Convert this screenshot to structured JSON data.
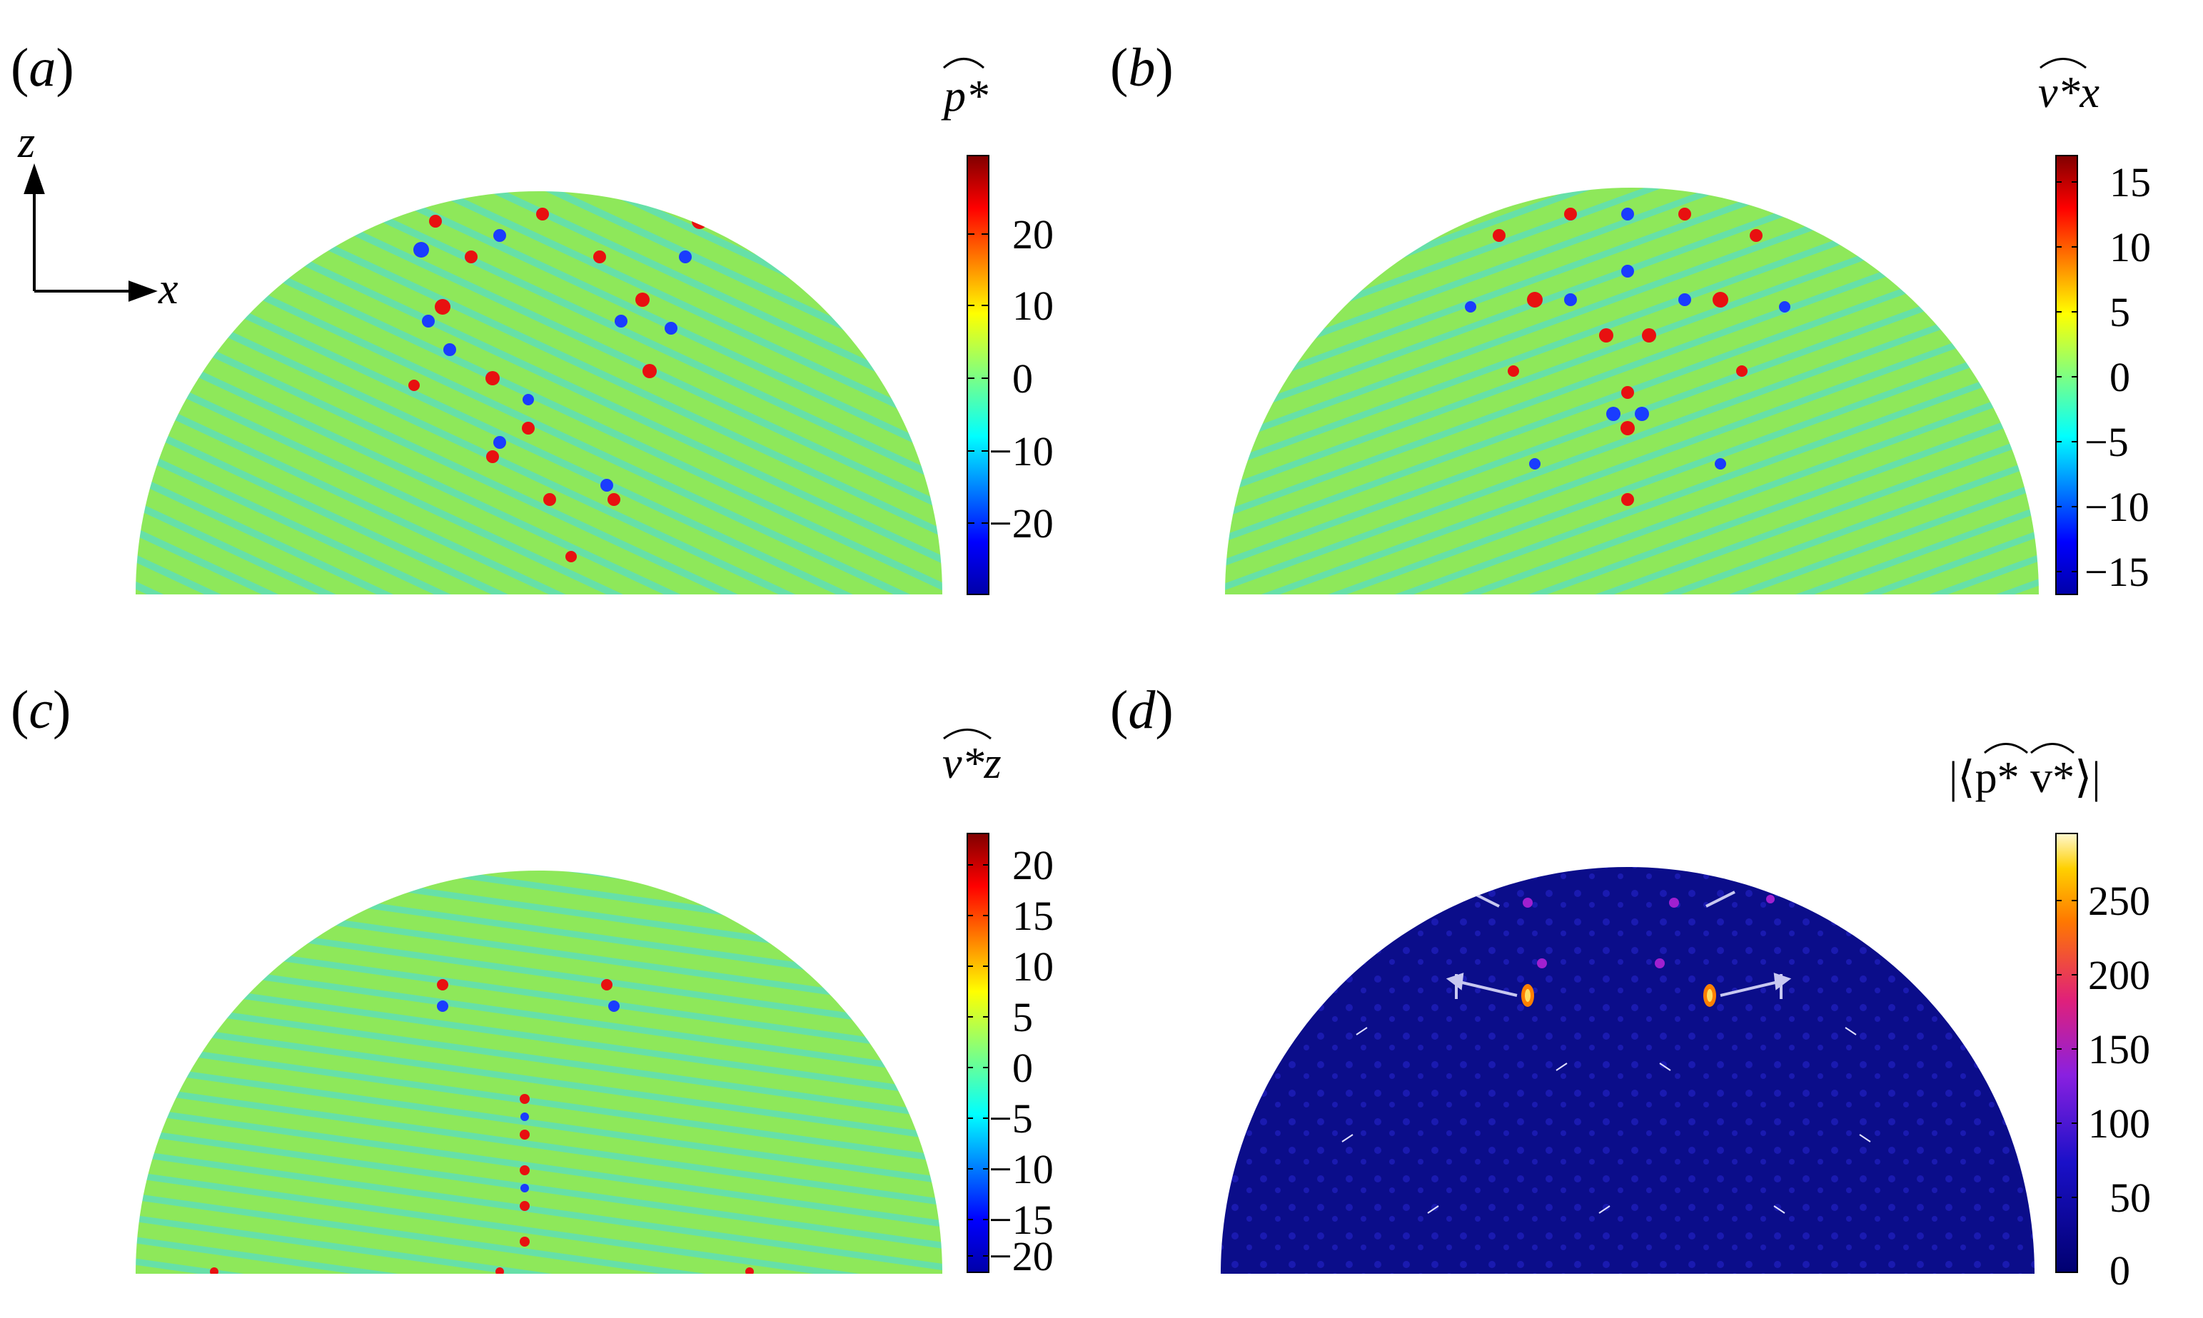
{
  "panels": [
    {
      "tag": "a",
      "colorbar": {
        "title": "p*",
        "ticks": [
          "20",
          "10",
          "0",
          "−10",
          "−20"
        ],
        "scheme": "jet"
      },
      "axes": {
        "x": "x",
        "z": "z"
      }
    },
    {
      "tag": "b",
      "colorbar": {
        "title": "v*x",
        "ticks": [
          "15",
          "10",
          "5",
          "0",
          "−5",
          "−10",
          "−15"
        ],
        "scheme": "jet"
      }
    },
    {
      "tag": "c",
      "colorbar": {
        "title": "v*z",
        "ticks": [
          "20",
          "15",
          "10",
          "5",
          "0",
          "−5",
          "−10",
          "−15",
          "−20"
        ],
        "scheme": "jet"
      }
    },
    {
      "tag": "d",
      "colorbar": {
        "title": "|⟨p* v*⟩|",
        "ticks": [
          "250",
          "200",
          "150",
          "100",
          "50",
          "0"
        ],
        "scheme": "plasma"
      }
    }
  ],
  "colors": {
    "jet_bg": "#8ee85a",
    "plasma_bg": "#0b0d8a"
  }
}
